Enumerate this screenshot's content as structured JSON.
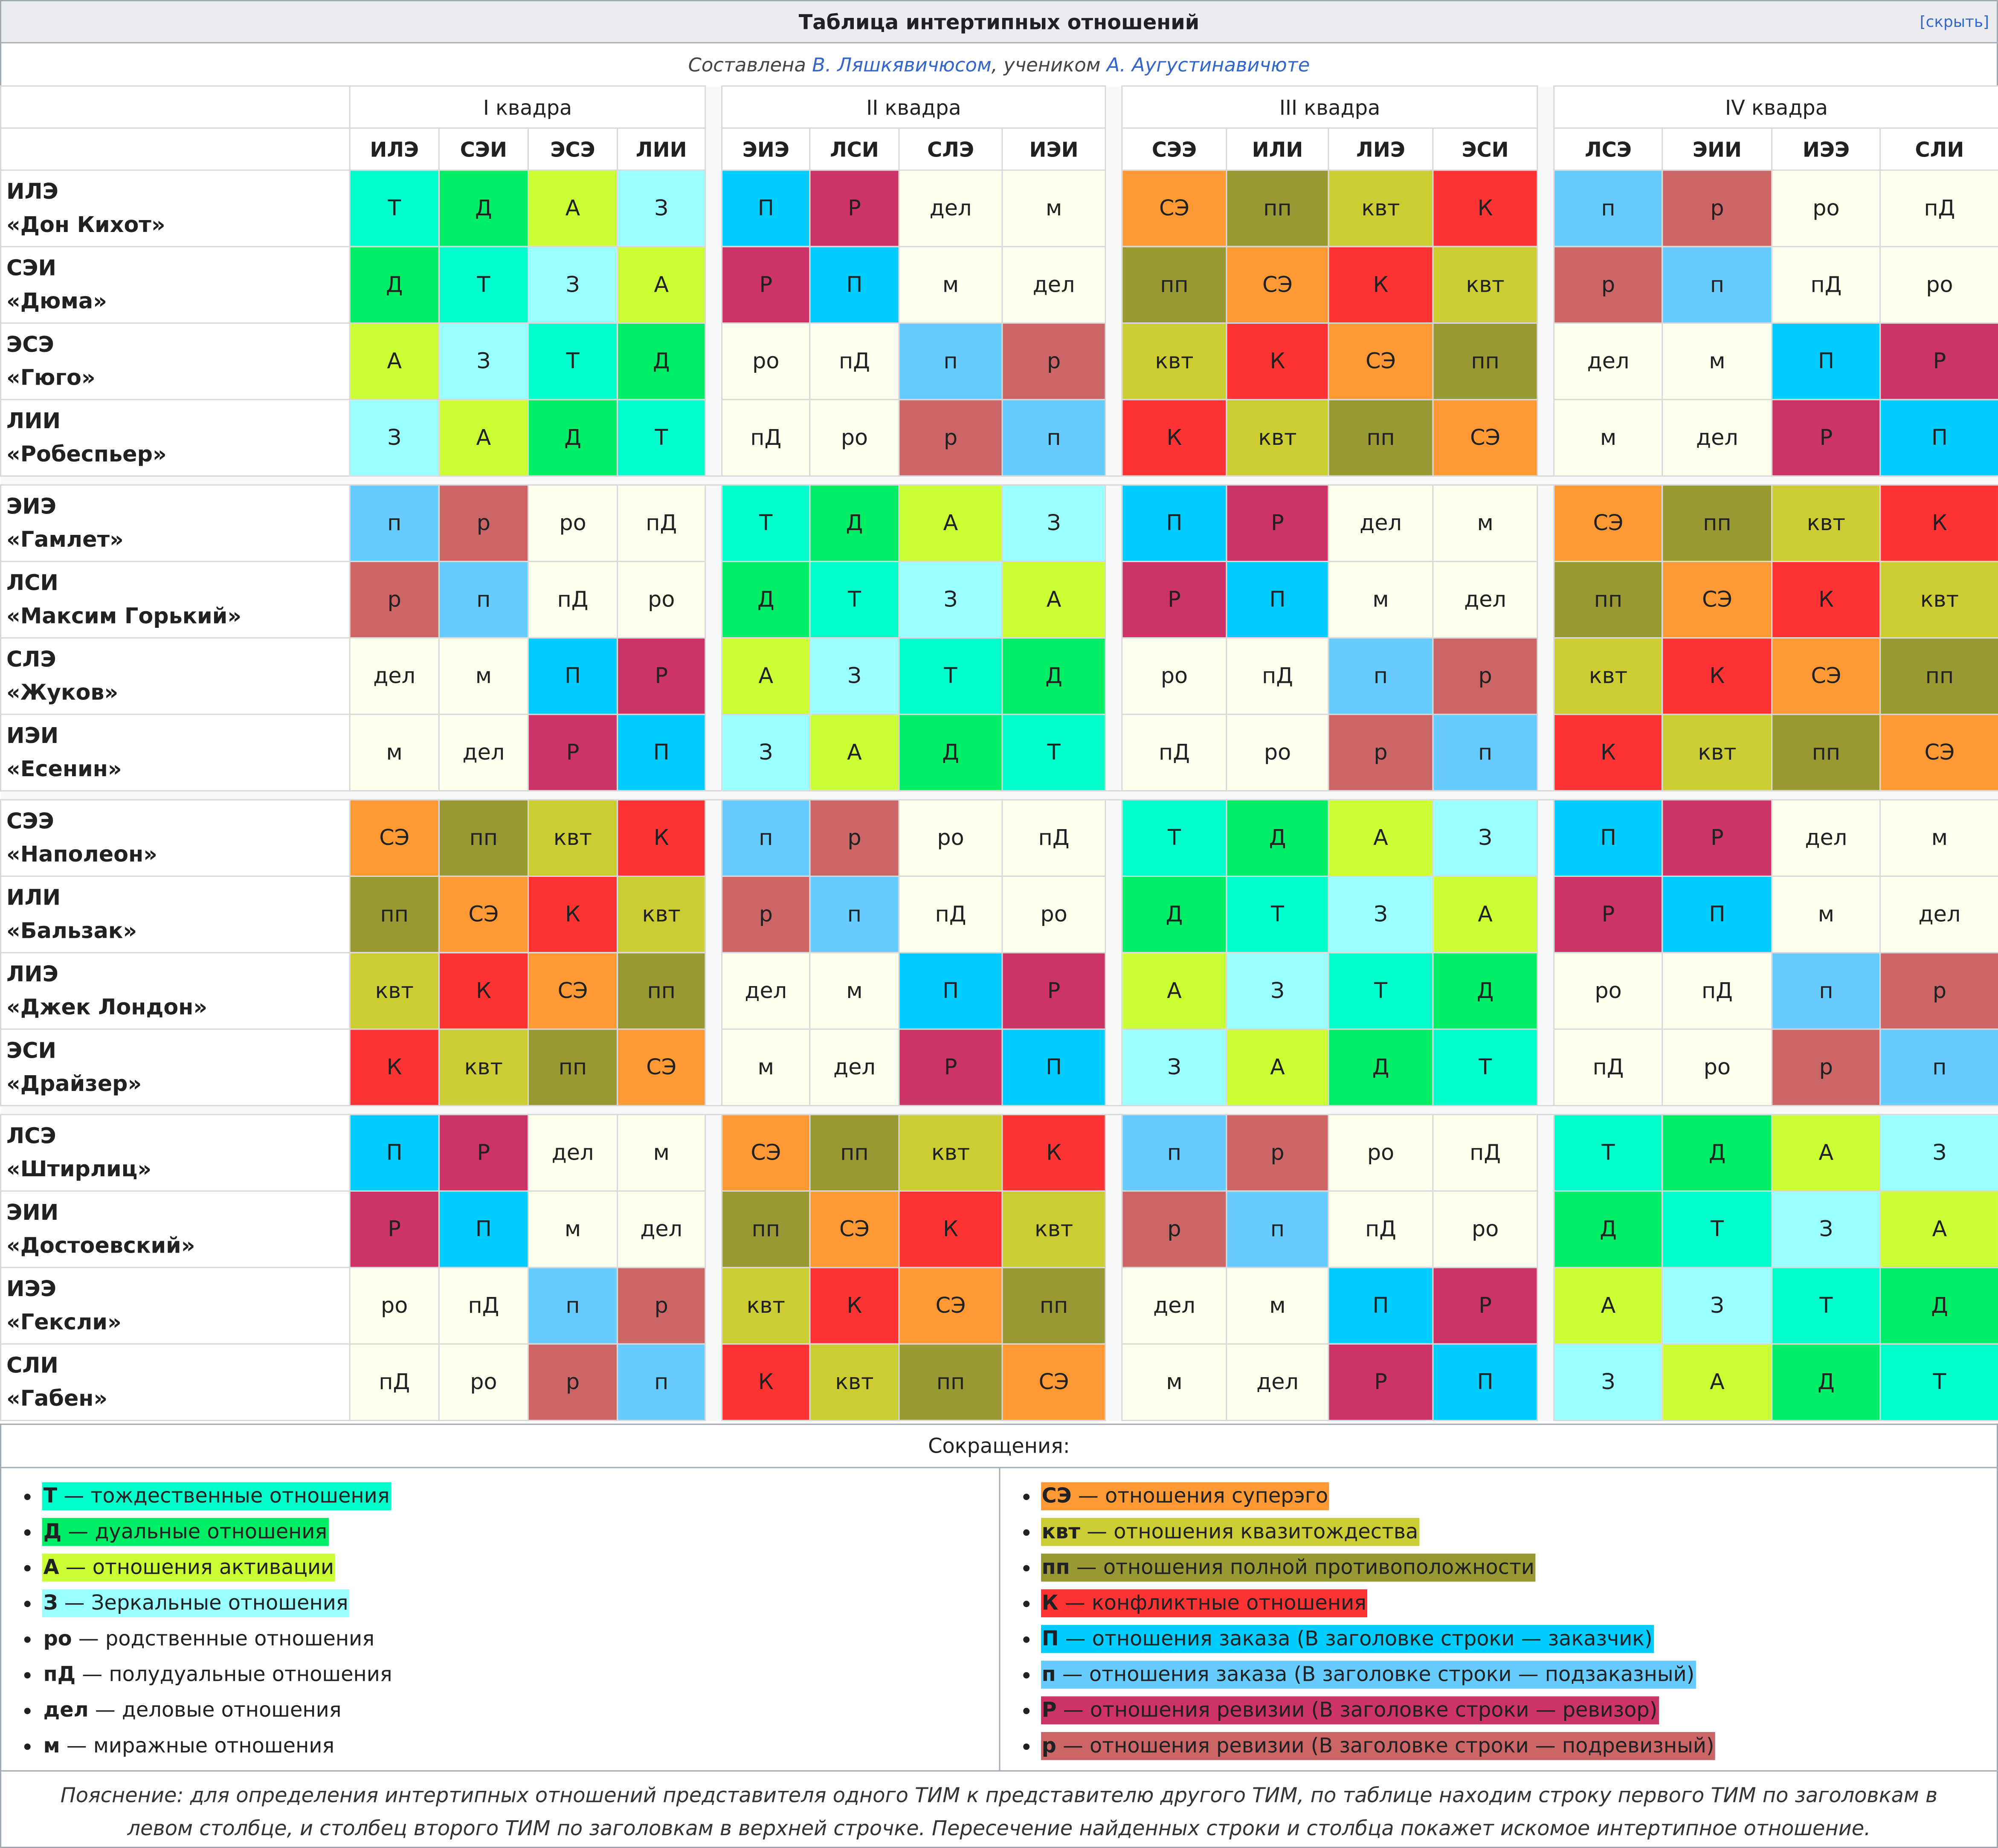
{
  "title": "Таблица интертипных отношений",
  "hide_label": "[скрыть]",
  "subtitle": {
    "prefix": "Составлена ",
    "author": "В. Ляшкявичюсом",
    "middle": ", учеником ",
    "teacher": "А. Аугустинавичюте"
  },
  "quadras": [
    "I квадра",
    "II квадра",
    "III квадра",
    "IV квадра"
  ],
  "types": [
    "ИЛЭ",
    "СЭИ",
    "ЭСЭ",
    "ЛИИ",
    "ЭИЭ",
    "ЛСИ",
    "СЛЭ",
    "ИЭИ",
    "СЭЭ",
    "ИЛИ",
    "ЛИЭ",
    "ЭСИ",
    "ЛСЭ",
    "ЭИИ",
    "ИЭЭ",
    "СЛИ"
  ],
  "rows": [
    {
      "type": "ИЛЭ",
      "name": "«Дон Кихот»",
      "cells": [
        "Т",
        "Д",
        "А",
        "З",
        "П",
        "Р",
        "дел",
        "м",
        "СЭ",
        "пп",
        "квт",
        "К",
        "п",
        "р",
        "ро",
        "пД"
      ]
    },
    {
      "type": "СЭИ",
      "name": "«Дюма»",
      "cells": [
        "Д",
        "Т",
        "З",
        "А",
        "Р",
        "П",
        "м",
        "дел",
        "пп",
        "СЭ",
        "К",
        "квт",
        "р",
        "п",
        "пД",
        "ро"
      ]
    },
    {
      "type": "ЭСЭ",
      "name": "«Гюго»",
      "cells": [
        "А",
        "З",
        "Т",
        "Д",
        "ро",
        "пД",
        "п",
        "р",
        "квт",
        "К",
        "СЭ",
        "пп",
        "дел",
        "м",
        "П",
        "Р"
      ]
    },
    {
      "type": "ЛИИ",
      "name": "«Робеспьер»",
      "cells": [
        "З",
        "А",
        "Д",
        "Т",
        "пД",
        "ро",
        "р",
        "п",
        "К",
        "квт",
        "пп",
        "СЭ",
        "м",
        "дел",
        "Р",
        "П"
      ]
    },
    {
      "type": "ЭИЭ",
      "name": "«Гамлет»",
      "cells": [
        "п",
        "р",
        "ро",
        "пД",
        "Т",
        "Д",
        "А",
        "З",
        "П",
        "Р",
        "дел",
        "м",
        "СЭ",
        "пп",
        "квт",
        "К"
      ]
    },
    {
      "type": "ЛСИ",
      "name": "«Максим Горький»",
      "cells": [
        "р",
        "п",
        "пД",
        "ро",
        "Д",
        "Т",
        "З",
        "А",
        "Р",
        "П",
        "м",
        "дел",
        "пп",
        "СЭ",
        "К",
        "квт"
      ]
    },
    {
      "type": "СЛЭ",
      "name": "«Жуков»",
      "cells": [
        "дел",
        "м",
        "П",
        "Р",
        "А",
        "З",
        "Т",
        "Д",
        "ро",
        "пД",
        "п",
        "р",
        "квт",
        "К",
        "СЭ",
        "пп"
      ]
    },
    {
      "type": "ИЭИ",
      "name": "«Есенин»",
      "cells": [
        "м",
        "дел",
        "Р",
        "П",
        "З",
        "А",
        "Д",
        "Т",
        "пД",
        "ро",
        "р",
        "п",
        "К",
        "квт",
        "пп",
        "СЭ"
      ]
    },
    {
      "type": "СЭЭ",
      "name": "«Наполеон»",
      "cells": [
        "СЭ",
        "пп",
        "квт",
        "К",
        "п",
        "р",
        "ро",
        "пД",
        "Т",
        "Д",
        "А",
        "З",
        "П",
        "Р",
        "дел",
        "м"
      ]
    },
    {
      "type": "ИЛИ",
      "name": "«Бальзак»",
      "cells": [
        "пп",
        "СЭ",
        "К",
        "квт",
        "р",
        "п",
        "пД",
        "ро",
        "Д",
        "Т",
        "З",
        "А",
        "Р",
        "П",
        "м",
        "дел"
      ]
    },
    {
      "type": "ЛИЭ",
      "name": "«Джек Лондон»",
      "cells": [
        "квт",
        "К",
        "СЭ",
        "пп",
        "дел",
        "м",
        "П",
        "Р",
        "А",
        "З",
        "Т",
        "Д",
        "ро",
        "пД",
        "п",
        "р"
      ]
    },
    {
      "type": "ЭСИ",
      "name": "«Драйзер»",
      "cells": [
        "К",
        "квт",
        "пп",
        "СЭ",
        "м",
        "дел",
        "Р",
        "П",
        "З",
        "А",
        "Д",
        "Т",
        "пД",
        "ро",
        "р",
        "п"
      ]
    },
    {
      "type": "ЛСЭ",
      "name": "«Штирлиц»",
      "cells": [
        "П",
        "Р",
        "дел",
        "м",
        "СЭ",
        "пп",
        "квт",
        "К",
        "п",
        "р",
        "ро",
        "пД",
        "Т",
        "Д",
        "А",
        "З"
      ]
    },
    {
      "type": "ЭИИ",
      "name": "«Достоевский»",
      "cells": [
        "Р",
        "П",
        "м",
        "дел",
        "пп",
        "СЭ",
        "К",
        "квт",
        "р",
        "п",
        "пД",
        "ро",
        "Д",
        "Т",
        "З",
        "А"
      ]
    },
    {
      "type": "ИЭЭ",
      "name": "«Гексли»",
      "cells": [
        "ро",
        "пД",
        "п",
        "р",
        "квт",
        "К",
        "СЭ",
        "пп",
        "дел",
        "м",
        "П",
        "Р",
        "А",
        "З",
        "Т",
        "Д"
      ]
    },
    {
      "type": "СЛИ",
      "name": "«Габен»",
      "cells": [
        "пД",
        "ро",
        "р",
        "п",
        "К",
        "квт",
        "пп",
        "СЭ",
        "м",
        "дел",
        "Р",
        "П",
        "З",
        "А",
        "Д",
        "Т"
      ]
    }
  ],
  "colors": {
    "Т": "#00ffcc",
    "Д": "#00ee66",
    "А": "#ccff33",
    "З": "#99ffff",
    "ро": "#ffffee",
    "пД": "#ffffee",
    "дел": "#ffffee",
    "м": "#ffffee",
    "СЭ": "#ff9933",
    "квт": "#cccc33",
    "пп": "#999933",
    "К": "#ff3333",
    "П": "#00ccff",
    "п": "#66ccff",
    "Р": "#cc3366",
    "р": "#cc6666"
  },
  "abbreviations_title": "Сокращения:",
  "legend": {
    "left": [
      {
        "abbr": "Т",
        "text": " — тождественные отношения"
      },
      {
        "abbr": "Д",
        "text": " — дуальные отношения"
      },
      {
        "abbr": "А",
        "text": " — отношения активации"
      },
      {
        "abbr": "З",
        "text": " — Зеркальные отношения"
      },
      {
        "abbr": "ро",
        "text": " — родственные отношения"
      },
      {
        "abbr": "пД",
        "text": " — полудуальные отношения"
      },
      {
        "abbr": "дел",
        "text": " — деловые отношения"
      },
      {
        "abbr": "м",
        "text": " — миражные отношения"
      }
    ],
    "right": [
      {
        "abbr": "СЭ",
        "text": " — отношения суперэго"
      },
      {
        "abbr": "квт",
        "text": " — отношения квазитождества"
      },
      {
        "abbr": "пп",
        "text": " — отношения полной противоположности"
      },
      {
        "abbr": "К",
        "text": " — конфликтные отношения"
      },
      {
        "abbr": "П",
        "text": " — отношения заказа (В заголовке строки — заказчик)"
      },
      {
        "abbr": "п",
        "text": " — отношения заказа (В заголовке строки — подзаказный)"
      },
      {
        "abbr": "Р",
        "text": " — отношения ревизии (В заголовке строки — ревизор)"
      },
      {
        "abbr": "р",
        "text": " — отношения ревизии (В заголовке строки — подревизный)"
      }
    ]
  },
  "note": "Пояснение: для определения интертипных отношений представителя одного ТИМ к представителю другого ТИМ, по таблице находим строку первого ТИМ по заголовкам в левом столбце, и столбец второго ТИМ по заголовкам в верхней строчке. Пересечение найденных строки и столбца покажет искомое интертипное отношение."
}
